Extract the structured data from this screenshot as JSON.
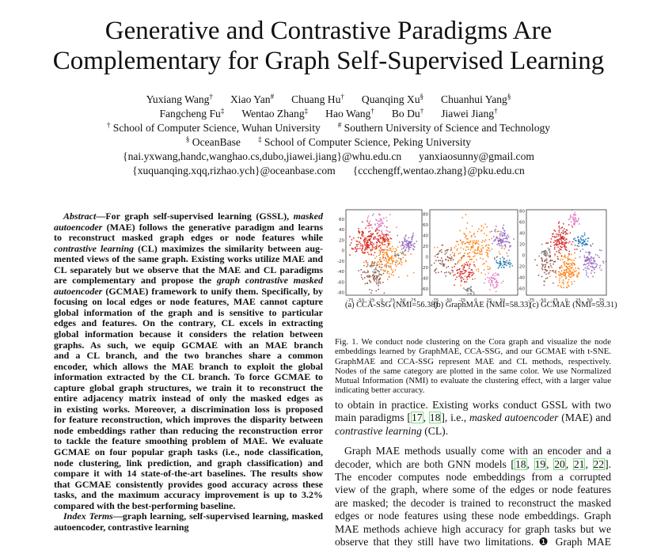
{
  "title": {
    "lines": [
      "Generative and Contrastive Paradigms Are",
      "Complementary for Graph Self-Supervised Learning"
    ]
  },
  "authors": {
    "row1": [
      {
        "name": "Yuxiang Wang",
        "mark": "†"
      },
      {
        "name": "Xiao Yan",
        "mark": "#"
      },
      {
        "name": "Chuang Hu",
        "mark": "†"
      },
      {
        "name": "Quanqing Xu",
        "mark": "§"
      },
      {
        "name": "Chuanhui Yang",
        "mark": "§"
      }
    ],
    "row2": [
      {
        "name": "Fangcheng Fu",
        "mark": "‡"
      },
      {
        "name": "Wentao Zhang",
        "mark": "‡"
      },
      {
        "name": "Hao Wang",
        "mark": "†"
      },
      {
        "name": "Bo Du",
        "mark": "†"
      },
      {
        "name": "Jiawei Jiang",
        "mark": "†"
      }
    ],
    "affil1": [
      {
        "mark": "†",
        "text": "School of Computer Science, Wuhan University"
      },
      {
        "mark": "#",
        "text": "Southern University of Science and Technology"
      }
    ],
    "affil2": [
      {
        "mark": "§",
        "text": "OceanBase"
      },
      {
        "mark": "‡",
        "text": "School of Computer Science, Peking University"
      }
    ],
    "emails1": [
      "{nai.yxwang,handc,wanghao.cs,dubo,jiawei.jiang}@whu.edu.cn",
      "yanxiaosunny@gmail.com"
    ],
    "emails2": [
      "{xuquanqing.xqq,rizhao.ych}@oceanbase.com",
      "{ccchengff,wentao.zhang}@pku.edu.cn"
    ]
  },
  "abstract": {
    "lines": [
      {
        "ind": true,
        "segs": [
          {
            "i": "Abstract"
          },
          {
            "t": "—For graph self-supervised learning (GSSL), "
          },
          {
            "i": "masked"
          }
        ]
      },
      {
        "segs": [
          {
            "i": "autoencoder"
          },
          {
            "t": " (MAE) follows the generative paradigm and learns"
          }
        ]
      },
      {
        "segs": [
          {
            "t": "to reconstruct masked graph edges or node features while"
          }
        ]
      },
      {
        "segs": [
          {
            "i": "contrastive learning"
          },
          {
            "t": " (CL) maximizes the similarity between aug-"
          }
        ]
      },
      {
        "segs": [
          {
            "t": "mented views of the same graph. Existing works utilize MAE and"
          }
        ]
      },
      {
        "segs": [
          {
            "t": "CL separately but we observe that the MAE and CL paradigms"
          }
        ]
      },
      {
        "segs": [
          {
            "t": "are complementary and propose the "
          },
          {
            "i": "graph contrastive masked"
          }
        ]
      },
      {
        "segs": [
          {
            "i": "autoencoder"
          },
          {
            "t": " (GCMAE) framework to unify them. Specifically, by"
          }
        ]
      },
      {
        "segs": [
          {
            "t": "focusing on local edges or node features, MAE cannot capture"
          }
        ]
      },
      {
        "segs": [
          {
            "t": "global information of the graph and is sensitive to particular"
          }
        ]
      },
      {
        "segs": [
          {
            "t": "edges and features. On the contrary, CL excels in extracting"
          }
        ]
      },
      {
        "segs": [
          {
            "t": "global information because it considers the relation between"
          }
        ]
      },
      {
        "segs": [
          {
            "t": "graphs. As such, we equip GCMAE with an MAE branch"
          }
        ]
      },
      {
        "segs": [
          {
            "t": "and a CL branch, and the two branches share a common"
          }
        ]
      },
      {
        "segs": [
          {
            "t": "encoder, which allows the MAE branch to exploit the global"
          }
        ]
      },
      {
        "segs": [
          {
            "t": "information extracted by the CL branch. To force GCMAE to"
          }
        ]
      },
      {
        "segs": [
          {
            "t": "capture global graph structures, we train it to reconstruct the"
          }
        ]
      },
      {
        "segs": [
          {
            "t": "entire adjacency matrix instead of only the masked edges as"
          }
        ]
      },
      {
        "segs": [
          {
            "t": "in existing works. Moreover, a discrimination loss is proposed"
          }
        ]
      },
      {
        "segs": [
          {
            "t": "for feature reconstruction, which improves the disparity between"
          }
        ]
      },
      {
        "segs": [
          {
            "t": "node embeddings rather than reducing the reconstruction error"
          }
        ]
      },
      {
        "segs": [
          {
            "t": "to tackle the feature smoothing problem of MAE. We evaluate"
          }
        ]
      },
      {
        "segs": [
          {
            "t": "GCMAE on four popular graph tasks (i.e., node classification,"
          }
        ]
      },
      {
        "segs": [
          {
            "t": "node clustering, link prediction, and graph classification) and"
          }
        ]
      },
      {
        "segs": [
          {
            "t": "compare it with 14 state-of-the-art baselines. The results show"
          }
        ]
      },
      {
        "segs": [
          {
            "t": "that GCMAE consistently provides good accuracy across these"
          }
        ]
      },
      {
        "segs": [
          {
            "t": "tasks, and the maximum accuracy improvement is up to 3.2%"
          }
        ]
      },
      {
        "last": true,
        "segs": [
          {
            "t": "compared with the best-performing baseline."
          }
        ]
      },
      {
        "ind": true,
        "segs": [
          {
            "i": "Index Terms"
          },
          {
            "t": "—graph learning, self-supervised learning, masked"
          }
        ]
      },
      {
        "last": true,
        "segs": [
          {
            "t": "autoencoder, contrastive learning"
          }
        ]
      }
    ]
  },
  "figure": {
    "caption_lines": [
      {
        "segs": [
          {
            "t": "Fig. 1.  We conduct node clustering on the Cora graph and visualize the node"
          }
        ]
      },
      {
        "segs": [
          {
            "t": "embeddings learned by GraphMAE, CCA-SSG, and our GCMAE with t-SNE."
          }
        ]
      },
      {
        "segs": [
          {
            "t": "GraphMAE and CCA-SSG represent MAE and CL methods, respectively."
          }
        ]
      },
      {
        "segs": [
          {
            "t": "Nodes of the same category are plotted in the same color. We use Normalized"
          }
        ]
      },
      {
        "segs": [
          {
            "t": "Mutual Information (NMI) to evaluate the clustering effect, with a larger value"
          }
        ]
      },
      {
        "last": true,
        "segs": [
          {
            "t": "indicating better accuracy."
          }
        ]
      }
    ]
  },
  "body": {
    "lines": [
      {
        "segs": [
          {
            "t": "to obtain in practice. Existing works conduct GSSL with two"
          }
        ]
      },
      {
        "segs": [
          {
            "t": "main paradigms ["
          },
          {
            "c": "17"
          },
          {
            "t": ", "
          },
          {
            "c": "18"
          },
          {
            "t": "], i.e., "
          },
          {
            "i": "masked autoencoder"
          },
          {
            "t": " (MAE) and"
          }
        ]
      },
      {
        "last": true,
        "segs": [
          {
            "i": "contrastive learning"
          },
          {
            "t": " (CL)."
          }
        ]
      },
      {
        "gap": true,
        "segs": []
      },
      {
        "ind": true,
        "segs": [
          {
            "t": "Graph MAE methods usually come with an encoder and a"
          }
        ]
      },
      {
        "segs": [
          {
            "t": "decoder, which are both GNN models ["
          },
          {
            "c": "18"
          },
          {
            "t": ", "
          },
          {
            "c": "19"
          },
          {
            "t": ", "
          },
          {
            "c": "20"
          },
          {
            "t": ", "
          },
          {
            "c": "21"
          },
          {
            "t": ", "
          },
          {
            "c": "22"
          },
          {
            "t": "]."
          }
        ]
      },
      {
        "segs": [
          {
            "t": "The encoder computes node embeddings from a corrupted"
          }
        ]
      },
      {
        "segs": [
          {
            "t": "view of the graph, where some of the edges or node features"
          }
        ]
      },
      {
        "segs": [
          {
            "t": "are masked; the decoder is trained to reconstruct the masked"
          }
        ]
      },
      {
        "segs": [
          {
            "t": "edges or node features using these node embeddings. Graph"
          }
        ]
      },
      {
        "segs": [
          {
            "t": "MAE methods achieve high accuracy for graph tasks but we"
          }
        ]
      },
      {
        "segs": [
          {
            "t": "observe that they still have two limitations. ❶ Graph MAE"
          }
        ]
      }
    ]
  },
  "chart_data": [
    {
      "type": "scatter",
      "caption": "(a) CCA-SSG (NMI=56.38)",
      "xlim": [
        -85,
        95
      ],
      "ylim": [
        -85,
        78
      ],
      "xticks": [
        -75,
        -50,
        -25,
        0,
        25,
        50,
        75
      ],
      "yticks": [
        60,
        40,
        20,
        0,
        -20,
        -40,
        -60,
        -80
      ],
      "clusters": [
        {
          "color": "#d62728",
          "cx": -35,
          "cy": 15,
          "sx": 18,
          "sy": 14,
          "n": 180
        },
        {
          "color": "#d62728",
          "cx": 5,
          "cy": 22,
          "sx": 8,
          "sy": 7,
          "n": 50
        },
        {
          "color": "#ff7f0e",
          "cx": 15,
          "cy": -15,
          "sx": 22,
          "sy": 18,
          "n": 170
        },
        {
          "color": "#9467bd",
          "cx": 62,
          "cy": 15,
          "sx": 10,
          "sy": 9,
          "n": 70
        },
        {
          "color": "#e377c2",
          "cx": -5,
          "cy": 55,
          "sx": 14,
          "sy": 10,
          "n": 55
        },
        {
          "color": "#8c564b",
          "cx": -20,
          "cy": -50,
          "sx": 15,
          "sy": 12,
          "n": 80
        },
        {
          "color": "#7f7f7f",
          "cx": -15,
          "cy": -30,
          "sx": 8,
          "sy": 6,
          "n": 20
        },
        {
          "color": "#1f77b4",
          "cx": 40,
          "cy": -10,
          "sx": 6,
          "sy": 5,
          "n": 8
        }
      ]
    },
    {
      "type": "scatter",
      "caption": "(b) GraphMAE (NMI=58.33)",
      "xlim": [
        -85,
        78
      ],
      "ylim": [
        -72,
        88
      ],
      "xticks": [
        -75,
        -50,
        -25,
        0,
        25,
        50
      ],
      "yticks": [
        80,
        60,
        40,
        20,
        0,
        -20,
        -40,
        -60
      ],
      "clusters": [
        {
          "color": "#ff7f0e",
          "cx": -5,
          "cy": 15,
          "sx": 22,
          "sy": 20,
          "n": 200
        },
        {
          "color": "#9467bd",
          "cx": 50,
          "cy": 32,
          "sx": 10,
          "sy": 9,
          "n": 80
        },
        {
          "color": "#1f77b4",
          "cx": 52,
          "cy": -12,
          "sx": 7,
          "sy": 5,
          "n": 45
        },
        {
          "color": "#d62728",
          "cx": -20,
          "cy": -30,
          "sx": 10,
          "sy": 10,
          "n": 70
        },
        {
          "color": "#e377c2",
          "cx": 35,
          "cy": -45,
          "sx": 8,
          "sy": 8,
          "n": 50
        },
        {
          "color": "#8c564b",
          "cx": -55,
          "cy": -5,
          "sx": 14,
          "sy": 18,
          "n": 70
        },
        {
          "color": "#7f7f7f",
          "cx": -10,
          "cy": -62,
          "sx": 5,
          "sy": 4,
          "n": 25
        }
      ]
    },
    {
      "type": "scatter",
      "caption": "(c) GCMAE (NMI=59.31)",
      "xlim": [
        -85,
        85
      ],
      "ylim": [
        -72,
        82
      ],
      "xticks": [
        -75,
        -50,
        -25,
        0,
        25,
        50,
        75
      ],
      "yticks": [
        80,
        60,
        40,
        20,
        0,
        -20,
        -40,
        -60
      ],
      "clusters": [
        {
          "color": "#d62728",
          "cx": -12,
          "cy": 28,
          "sx": 12,
          "sy": 12,
          "n": 130
        },
        {
          "color": "#ff7f0e",
          "cx": 2,
          "cy": -30,
          "sx": 12,
          "sy": 16,
          "n": 150
        },
        {
          "color": "#1f77b4",
          "cx": 32,
          "cy": 25,
          "sx": 7,
          "sy": 6,
          "n": 50
        },
        {
          "color": "#9467bd",
          "cx": 52,
          "cy": -10,
          "sx": 12,
          "sy": 12,
          "n": 85
        },
        {
          "color": "#e377c2",
          "cx": 17,
          "cy": 65,
          "sx": 5,
          "sy": 7,
          "n": 40
        },
        {
          "color": "#8c564b",
          "cx": -40,
          "cy": -20,
          "sx": 10,
          "sy": 12,
          "n": 70
        },
        {
          "color": "#7f7f7f",
          "cx": -45,
          "cy": 5,
          "sx": 6,
          "sy": 6,
          "n": 25
        }
      ]
    }
  ]
}
